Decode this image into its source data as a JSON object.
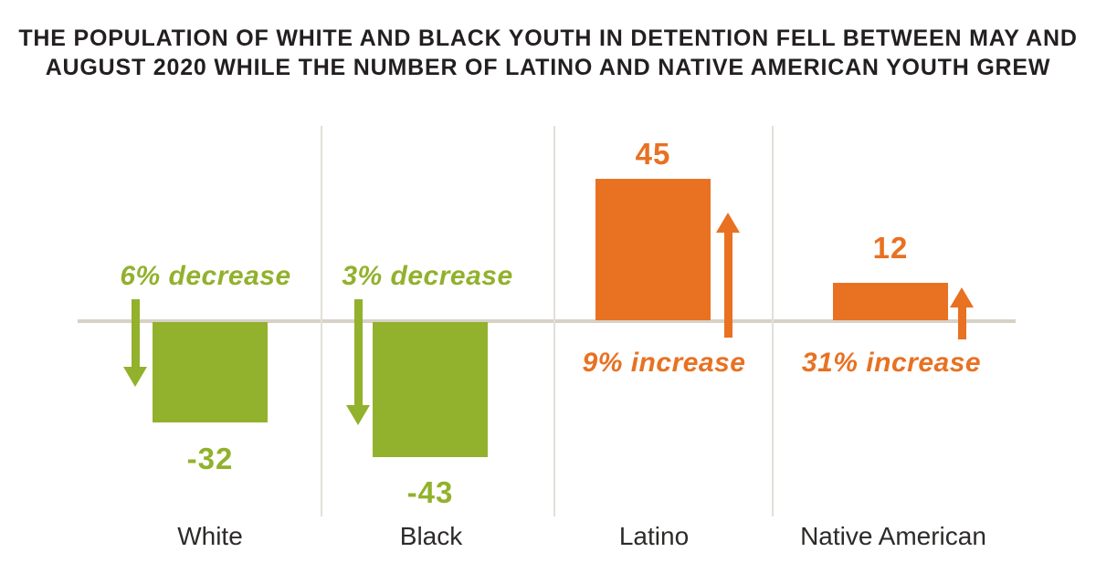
{
  "title": {
    "line1": "THE POPULATION OF WHITE AND BLACK YOUTH IN DETENTION FELL BETWEEN MAY AND",
    "line2": "AUGUST 2020 WHILE THE NUMBER OF LATINO AND NATIVE AMERICAN YOUTH GREW"
  },
  "chart_data": {
    "type": "bar",
    "title": "THE POPULATION OF WHITE AND BLACK YOUTH IN DETENTION FELL BETWEEN MAY AND AUGUST 2020 WHILE THE NUMBER OF LATINO AND NATIVE AMERICAN YOUTH GREW",
    "categories": [
      "White",
      "Black",
      "Latino",
      "Native American"
    ],
    "values": [
      -32,
      -43,
      45,
      12
    ],
    "value_labels": [
      "-32",
      "-43",
      "45",
      "12"
    ],
    "change_labels": [
      "6% decrease",
      "3% decrease",
      "9% increase",
      "31% increase"
    ],
    "directions": [
      "down",
      "down",
      "up",
      "up"
    ],
    "baseline": 0,
    "ylim": [
      -50,
      50
    ],
    "value_axis_visible": false,
    "grid": "vertical-column-dividers-only",
    "legend": "none",
    "colors": {
      "decrease_green": "#92B12C",
      "increase_orange": "#E87122",
      "axis_line": "#D7D1C6",
      "divider_line": "#E2DFD8",
      "title_text": "#231F20",
      "category_text": "#2D2B2A"
    }
  }
}
